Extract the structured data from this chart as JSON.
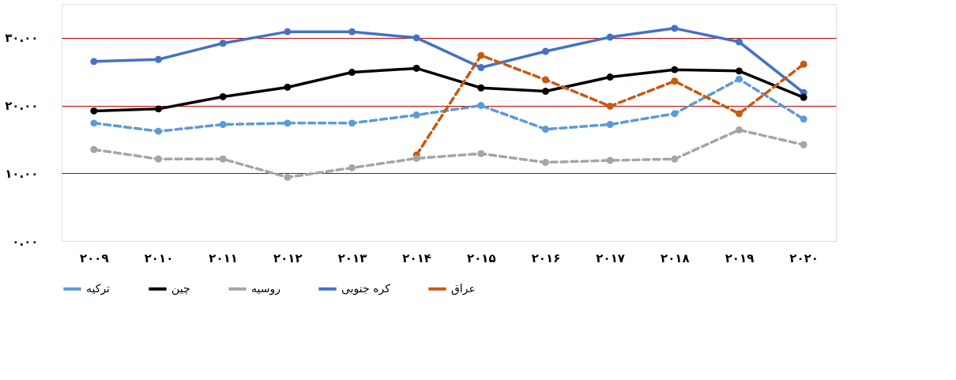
{
  "chart_data": {
    "type": "line",
    "categories": [
      "۲۰۰۹",
      "۲۰۱۰",
      "۲۰۱۱",
      "۲۰۱۲",
      "۲۰۱۳",
      "۲۰۱۴",
      "۲۰۱۵",
      "۲۰۱۶",
      "۲۰۱۷",
      "۲۰۱۸",
      "۲۰۱۹",
      "۲۰۲۰"
    ],
    "ylim": [
      0,
      35
    ],
    "yticks": [
      {
        "value": 0,
        "label": "۰.۰۰"
      },
      {
        "value": 10,
        "label": "۱۰.۰۰"
      },
      {
        "value": 20,
        "label": "۲۰.۰۰"
      },
      {
        "value": 30,
        "label": "۳۰.۰۰"
      }
    ],
    "grid": "y",
    "legend": "bottom",
    "marker": "circle",
    "series": [
      {
        "name": "ترکیه",
        "color": "#5b9bd5",
        "line_style": "dashed",
        "values": [
          17.4,
          16.2,
          17.2,
          17.4,
          17.4,
          18.6,
          20.0,
          16.5,
          17.2,
          18.8,
          23.9,
          18.0
        ]
      },
      {
        "name": "چین",
        "color": "#000000",
        "line_style": "solid",
        "values": [
          19.2,
          19.5,
          21.3,
          22.7,
          24.9,
          25.5,
          22.6,
          22.1,
          24.2,
          25.3,
          25.1,
          21.2
        ]
      },
      {
        "name": "روسیه",
        "color": "#a5a5a5",
        "line_style": "dashed",
        "values": [
          13.5,
          12.1,
          12.1,
          9.4,
          10.8,
          12.2,
          12.9,
          11.6,
          11.9,
          12.1,
          16.4,
          14.2
        ]
      },
      {
        "name": "کره جنوبی",
        "color": "#4472c4",
        "line_style": "solid",
        "values": [
          26.5,
          26.8,
          29.2,
          30.9,
          30.9,
          30.0,
          25.6,
          28.0,
          30.1,
          31.4,
          29.4,
          21.9
        ]
      },
      {
        "name": "عراق",
        "color": "#c55a11",
        "line_style": "dashed",
        "values": [
          null,
          null,
          null,
          null,
          null,
          12.7,
          27.4,
          23.8,
          19.9,
          23.6,
          18.8,
          26.1
        ]
      }
    ]
  }
}
